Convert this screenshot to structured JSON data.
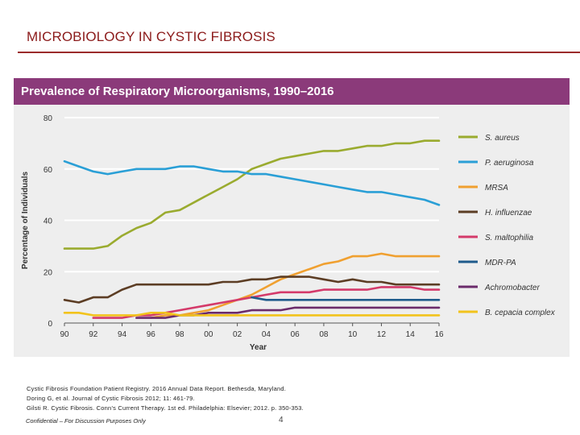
{
  "slide": {
    "title": "MICROBIOLOGY IN CYSTIC FIBROSIS",
    "references": [
      "Cystic Fibrosis Foundation Patient Registry. 2016 Annual Data Report. Bethesda, Maryland.",
      "Doring G, et al. Journal of Cystic Fibrosis 2012; 11: 461-79.",
      "Gilsti R. Cystic Fibrosis. Conn’s Current Therapy. 1st ed. Philadelphia: Elsevier; 2012. p. 350-353."
    ],
    "footer": "Confidential – For Discussion Purposes Only",
    "page_number": "4"
  },
  "chart_data": {
    "type": "line",
    "title": "Prevalence of Respiratory Microorganisms, 1990–2016",
    "xlabel": "Year",
    "ylabel": "Percentage of Individuals",
    "x_tick_labels": [
      "90",
      "92",
      "94",
      "96",
      "98",
      "00",
      "02",
      "04",
      "06",
      "08",
      "10",
      "12",
      "14",
      "16"
    ],
    "y_ticks": [
      0,
      20,
      40,
      60,
      80
    ],
    "xlim": [
      1990,
      2016
    ],
    "ylim": [
      0,
      80
    ],
    "grid": "horizontal",
    "legend_position": "right",
    "series": [
      {
        "name": "S. aureus",
        "color": "#9aab2f",
        "x": [
          1990,
          1991,
          1992,
          1993,
          1994,
          1995,
          1996,
          1997,
          1998,
          1999,
          2000,
          2001,
          2002,
          2003,
          2004,
          2005,
          2006,
          2007,
          2008,
          2009,
          2010,
          2011,
          2012,
          2013,
          2014,
          2015,
          2016
        ],
        "y": [
          29,
          29,
          29,
          30,
          34,
          37,
          39,
          43,
          44,
          47,
          50,
          53,
          56,
          60,
          62,
          64,
          65,
          66,
          67,
          67,
          68,
          69,
          69,
          70,
          70,
          71,
          71
        ]
      },
      {
        "name": "P. aeruginosa",
        "color": "#2a9fd6",
        "x": [
          1990,
          1991,
          1992,
          1993,
          1994,
          1995,
          1996,
          1997,
          1998,
          1999,
          2000,
          2001,
          2002,
          2003,
          2004,
          2005,
          2006,
          2007,
          2008,
          2009,
          2010,
          2011,
          2012,
          2013,
          2014,
          2015,
          2016
        ],
        "y": [
          63,
          61,
          59,
          58,
          59,
          60,
          60,
          60,
          61,
          61,
          60,
          59,
          59,
          58,
          58,
          57,
          56,
          55,
          54,
          53,
          52,
          51,
          51,
          50,
          49,
          48,
          46
        ]
      },
      {
        "name": "MRSA",
        "color": "#f0a030",
        "x": [
          1996,
          1997,
          1998,
          1999,
          2000,
          2001,
          2002,
          2003,
          2004,
          2005,
          2006,
          2007,
          2008,
          2009,
          2010,
          2011,
          2012,
          2013,
          2014,
          2015,
          2016
        ],
        "y": [
          2,
          3,
          3,
          4,
          5,
          7,
          9,
          11,
          14,
          17,
          19,
          21,
          23,
          24,
          26,
          26,
          27,
          26,
          26,
          26,
          26
        ]
      },
      {
        "name": "H. influenzae",
        "color": "#5c3d24",
        "x": [
          1990,
          1991,
          1992,
          1993,
          1994,
          1995,
          1996,
          1997,
          1998,
          1999,
          2000,
          2001,
          2002,
          2003,
          2004,
          2005,
          2006,
          2007,
          2008,
          2009,
          2010,
          2011,
          2012,
          2013,
          2014,
          2015,
          2016
        ],
        "y": [
          9,
          8,
          10,
          10,
          13,
          15,
          15,
          15,
          15,
          15,
          15,
          16,
          16,
          17,
          17,
          18,
          18,
          18,
          17,
          16,
          17,
          16,
          16,
          15,
          15,
          15,
          15
        ]
      },
      {
        "name": "S. maltophilia",
        "color": "#d43a6a",
        "x": [
          1992,
          1993,
          1994,
          1995,
          1996,
          1997,
          1998,
          1999,
          2000,
          2001,
          2002,
          2003,
          2004,
          2005,
          2006,
          2007,
          2008,
          2009,
          2010,
          2011,
          2012,
          2013,
          2014,
          2015,
          2016
        ],
        "y": [
          2,
          2,
          2,
          3,
          3,
          4,
          5,
          6,
          7,
          8,
          9,
          10,
          11,
          12,
          12,
          12,
          13,
          13,
          13,
          13,
          14,
          14,
          14,
          13,
          13
        ]
      },
      {
        "name": "MDR-PA",
        "color": "#1f5b8c",
        "x": [
          2003,
          2004,
          2005,
          2006,
          2007,
          2008,
          2009,
          2010,
          2011,
          2012,
          2013,
          2014,
          2015,
          2016
        ],
        "y": [
          10,
          9,
          9,
          9,
          9,
          9,
          9,
          9,
          9,
          9,
          9,
          9,
          9,
          9
        ]
      },
      {
        "name": "Achromobacter",
        "color": "#6b2b6b",
        "x": [
          1995,
          1996,
          1997,
          1998,
          1999,
          2000,
          2001,
          2002,
          2003,
          2004,
          2005,
          2006,
          2007,
          2008,
          2009,
          2010,
          2011,
          2012,
          2013,
          2014,
          2015,
          2016
        ],
        "y": [
          2,
          2,
          2,
          3,
          3,
          4,
          4,
          4,
          5,
          5,
          5,
          6,
          6,
          6,
          6,
          6,
          6,
          6,
          6,
          6,
          6,
          6
        ]
      },
      {
        "name": "B. cepacia complex",
        "color": "#f2c31c",
        "x": [
          1990,
          1991,
          1992,
          1993,
          1994,
          1995,
          1996,
          1997,
          1998,
          1999,
          2000,
          2001,
          2002,
          2003,
          2004,
          2005,
          2006,
          2007,
          2008,
          2009,
          2010,
          2011,
          2012,
          2013,
          2014,
          2015,
          2016
        ],
        "y": [
          4,
          4,
          3,
          3,
          3,
          3,
          4,
          4,
          3,
          3,
          3,
          3,
          3,
          3,
          3,
          3,
          3,
          3,
          3,
          3,
          3,
          3,
          3,
          3,
          3,
          3,
          3
        ]
      }
    ]
  }
}
